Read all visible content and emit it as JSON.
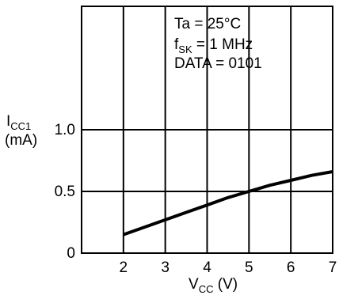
{
  "chart_data": {
    "type": "line",
    "xlim": [
      1,
      7
    ],
    "ylim": [
      0,
      2.0
    ],
    "x_ticks": [
      2,
      3,
      4,
      5,
      6,
      7
    ],
    "y_ticks": [
      0,
      0.5,
      1.0
    ],
    "x_tick_labels": [
      "2",
      "3",
      "4",
      "5",
      "6",
      "7"
    ],
    "y_tick_labels": [
      "0",
      "0.5",
      "1.0"
    ],
    "xlabel": {
      "main": "V",
      "sub": "CC",
      "unit": " (V)"
    },
    "ylabel": {
      "main": "I",
      "sub": "CC1",
      "unit": "(mA)"
    },
    "grid": "major gridlines at every tick",
    "annotations": {
      "line1": "Ta = 25°C",
      "line2_main": "f",
      "line2_sub": "SK",
      "line2_rest": " = 1 MHz",
      "line3": "DATA = 0101"
    },
    "series": [
      {
        "x": [
          2.0,
          2.5,
          3.0,
          3.5,
          4.0,
          4.5,
          5.0,
          5.5,
          6.0,
          6.5,
          7.0
        ],
        "y": [
          0.15,
          0.21,
          0.27,
          0.33,
          0.39,
          0.45,
          0.5,
          0.55,
          0.59,
          0.63,
          0.66
        ]
      }
    ],
    "line_color": "#000000"
  }
}
